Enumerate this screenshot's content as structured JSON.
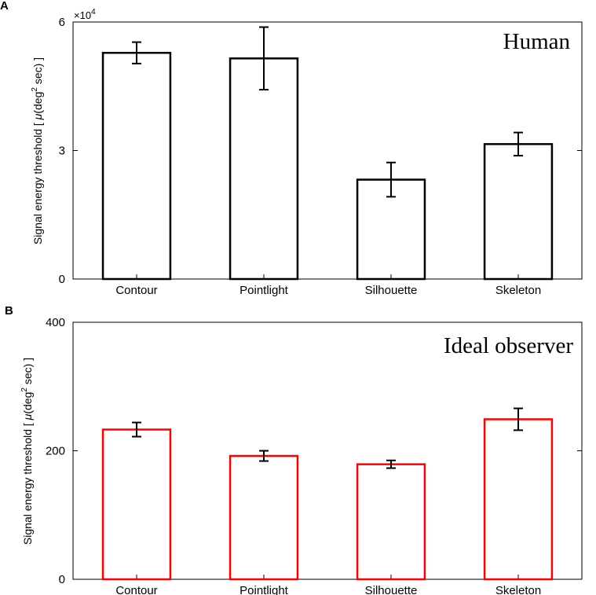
{
  "chart_data": [
    {
      "type": "bar",
      "panel_label": "A",
      "title": "Human",
      "ylabel": "Signal energy threshold [ μ(deg² sec) ]",
      "ylabel_parts": [
        "Signal energy threshold [ ",
        "μ",
        "(deg",
        "2",
        " sec) ]"
      ],
      "y_multiplier": "×10",
      "y_multiplier_exp": "4",
      "ylim": [
        0,
        60000
      ],
      "yticks": [
        0,
        30000,
        60000
      ],
      "ytick_labels": [
        "0",
        "3",
        "6"
      ],
      "categories": [
        "Contour",
        "Pointlight",
        "Silhouette",
        "Skeleton"
      ],
      "values": [
        52800,
        51500,
        23200,
        31500
      ],
      "errors": [
        2500,
        7300,
        4000,
        2700
      ],
      "color": "#000000"
    },
    {
      "type": "bar",
      "panel_label": "B",
      "title": "Ideal observer",
      "ylabel": "Signal energy threshold [ μ(deg² sec) ]",
      "ylabel_parts": [
        "Signal energy threshold [ ",
        "μ",
        "(deg",
        "2",
        " sec) ]"
      ],
      "ylim": [
        0,
        400
      ],
      "yticks": [
        0,
        200,
        400
      ],
      "ytick_labels": [
        "0",
        "200",
        "400"
      ],
      "categories": [
        "Contour",
        "Pointlight",
        "Silhouette",
        "Skeleton"
      ],
      "values": [
        233,
        192,
        179,
        249
      ],
      "errors": [
        11,
        8,
        6,
        17
      ],
      "color": "#ff0000"
    }
  ]
}
